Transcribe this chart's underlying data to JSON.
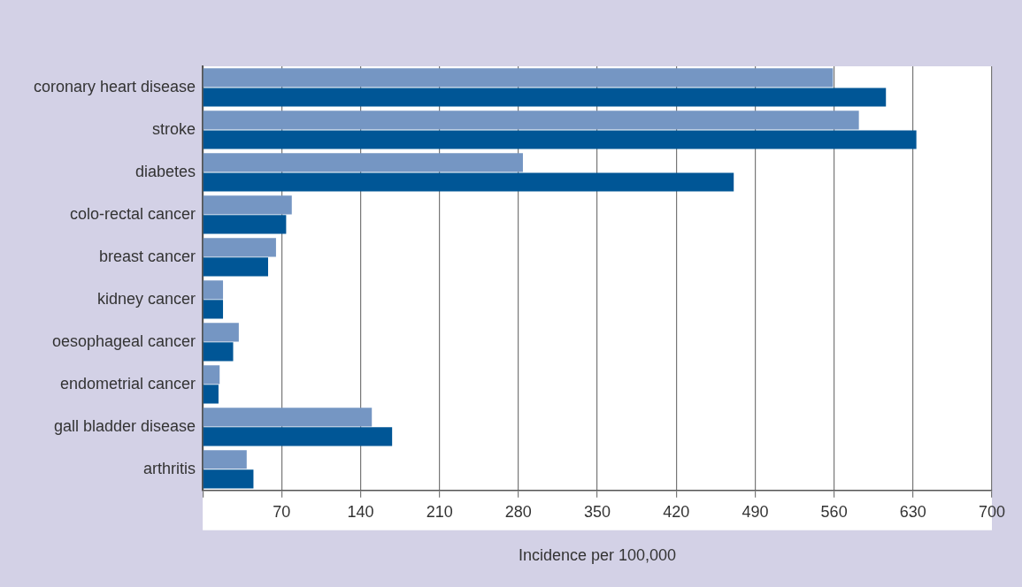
{
  "chart_data": {
    "type": "bar",
    "orientation": "horizontal",
    "xlabel": "Incidence per 100,000",
    "categories": [
      "coronary heart disease",
      "stroke",
      "diabetes",
      "colo-rectal cancer",
      "breast cancer",
      "kidney cancer",
      "oesophageal cancer",
      "endometrial cancer",
      "gall bladder disease",
      "arthritis"
    ],
    "series": [
      {
        "color": "#7596c3",
        "values": [
          559,
          582,
          284,
          79,
          65,
          18,
          32,
          15,
          150,
          39
        ]
      },
      {
        "color": "#005696",
        "values": [
          606,
          633,
          471,
          74,
          58,
          18,
          27,
          14,
          168,
          45
        ]
      }
    ],
    "xlim": [
      0,
      700
    ],
    "xticks": [
      {
        "value": 0,
        "label": null
      },
      70,
      140,
      210,
      280,
      350,
      420,
      490,
      560,
      630,
      700
    ],
    "grid": "x",
    "legend": false
  }
}
